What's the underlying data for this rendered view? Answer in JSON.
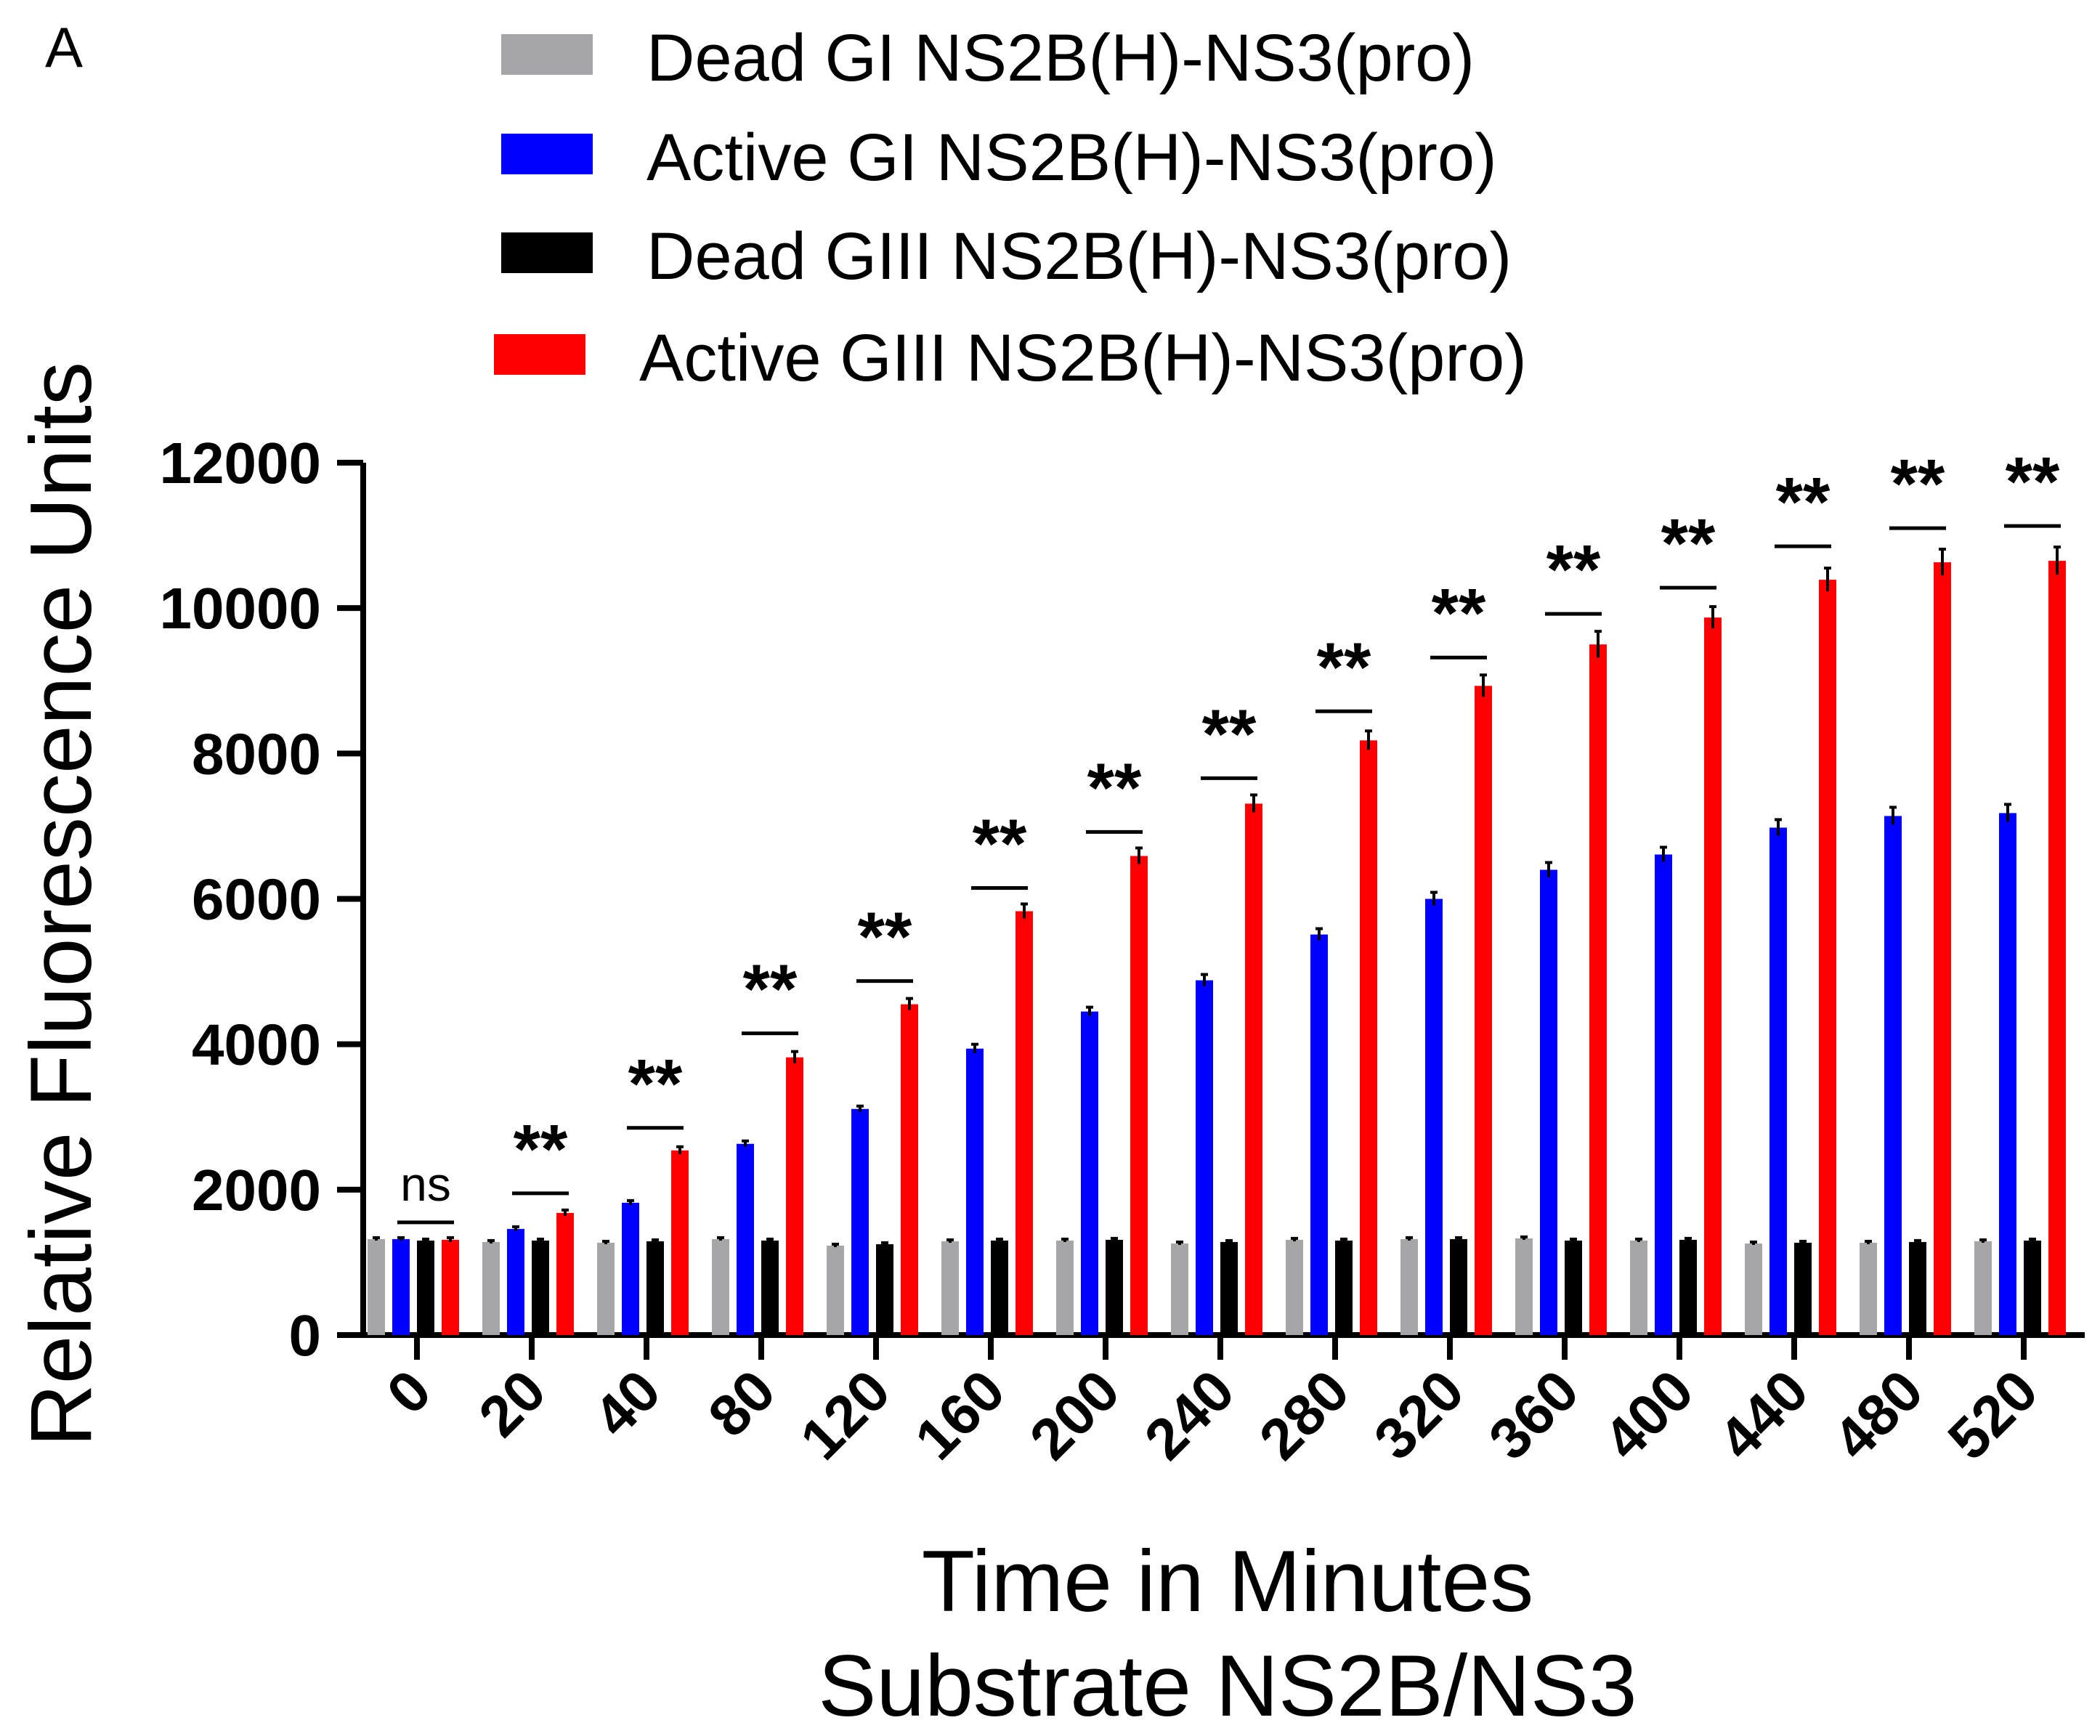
{
  "panel_label": "A",
  "chart_data": {
    "type": "bar",
    "title": "",
    "xlabel": "Time in Minutes",
    "xlabel2": "Substrate NS2B/NS3",
    "ylabel": "Relative Fluorescence Units",
    "ylim": [
      0,
      12000
    ],
    "yticks": [
      0,
      2000,
      4000,
      6000,
      8000,
      10000,
      12000
    ],
    "ytick_labels": [
      "0",
      "2000",
      "4000",
      "6000",
      "8000",
      "10000",
      "12000"
    ],
    "grid": false,
    "legend_position": "top",
    "categories": [
      "0",
      "20",
      "40",
      "80",
      "120",
      "160",
      "200",
      "240",
      "280",
      "320",
      "360",
      "400",
      "440",
      "480",
      "520"
    ],
    "series": [
      {
        "name": "Dead GI NS2B(H)-NS3(pro)",
        "color": "#a6a6a8",
        "values": [
          1320,
          1280,
          1270,
          1320,
          1230,
          1290,
          1300,
          1260,
          1310,
          1320,
          1330,
          1300,
          1260,
          1270,
          1290
        ],
        "errors": [
          20,
          20,
          20,
          20,
          20,
          20,
          20,
          20,
          20,
          20,
          20,
          20,
          20,
          20,
          20
        ]
      },
      {
        "name": "Active GI NS2B(H)-NS3(pro)",
        "color": "#0000ff",
        "values": [
          1320,
          1460,
          1820,
          2630,
          3110,
          3940,
          4450,
          4880,
          5510,
          6000,
          6400,
          6610,
          6980,
          7140,
          7180
        ],
        "errors": [
          20,
          30,
          30,
          40,
          40,
          60,
          60,
          80,
          80,
          90,
          100,
          100,
          110,
          120,
          120
        ]
      },
      {
        "name": "Dead GIII NS2B(H)-NS3(pro)",
        "color": "#000000",
        "values": [
          1300,
          1300,
          1290,
          1300,
          1250,
          1300,
          1310,
          1280,
          1300,
          1320,
          1300,
          1310,
          1270,
          1280,
          1300
        ],
        "errors": [
          20,
          20,
          20,
          20,
          20,
          20,
          20,
          20,
          20,
          20,
          20,
          20,
          20,
          20,
          20
        ]
      },
      {
        "name": "Active GIII NS2B(H)-NS3(pro)",
        "color": "#ff0000",
        "values": [
          1310,
          1680,
          2540,
          3820,
          4550,
          5830,
          6590,
          7310,
          8180,
          8930,
          9500,
          9870,
          10390,
          10630,
          10650
        ],
        "errors": [
          30,
          40,
          50,
          80,
          80,
          100,
          110,
          120,
          130,
          150,
          180,
          150,
          160,
          180,
          190
        ]
      }
    ],
    "significance": {
      "labels": [
        "ns",
        "**",
        "**",
        "**",
        "**",
        "**",
        "**",
        "**",
        "**",
        "**",
        "**",
        "**",
        "**",
        "**",
        "**"
      ],
      "bracket_values": [
        1550,
        1950,
        2850,
        4150,
        4870,
        6150,
        6920,
        7660,
        8580,
        9320,
        9920,
        10280,
        10850,
        11100,
        11130
      ]
    }
  }
}
